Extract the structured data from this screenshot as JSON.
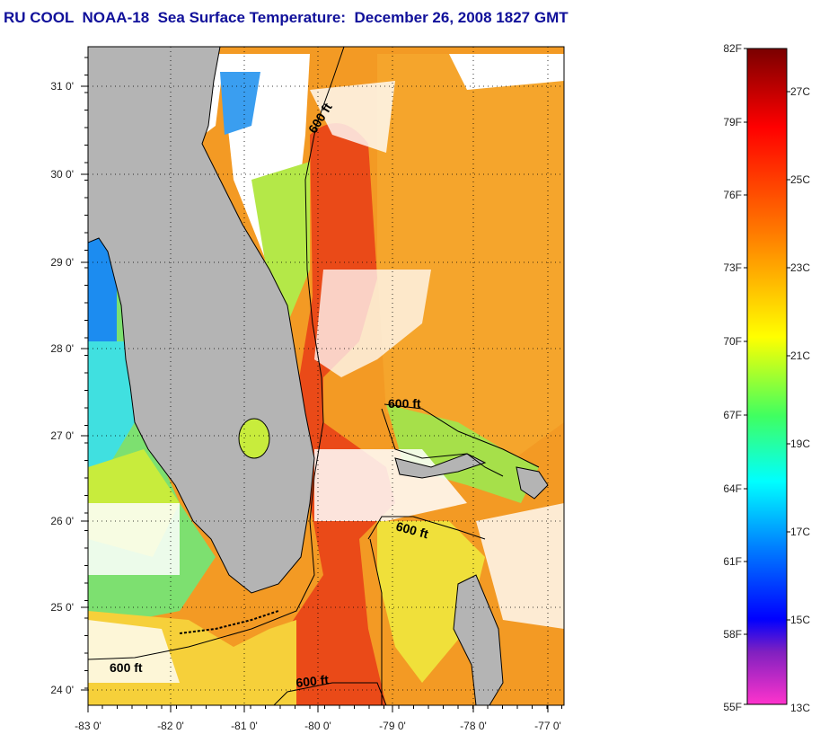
{
  "title": "RU COOL  NOAA-18  Sea Surface Temperature:  December 26, 2008 1827 GMT",
  "map": {
    "lon_labels": [
      "-83 0'",
      "-82 0'",
      "-81 0'",
      "-80 0'",
      "-79 0'",
      "-78 0'",
      "-77 0'"
    ],
    "lat_labels": [
      "31 0'",
      "30 0'",
      "29 0'",
      "28 0'",
      "27 0'",
      "26 0'",
      "25 0'",
      "24 0'"
    ],
    "isobath_labels": [
      "600 ft",
      "600 ft",
      "600 ft",
      "600 ft",
      "600 ft"
    ],
    "colors": {
      "land": "#b4b4b4",
      "cloud": "#ffffff",
      "gulf_stream": "#ea4a18",
      "open_ocean": "#f39a24",
      "shelf": "#a6e04a"
    }
  },
  "colorbar": {
    "f_labels": [
      "82F",
      "79F",
      "76F",
      "73F",
      "70F",
      "67F",
      "64F",
      "61F",
      "58F",
      "55F"
    ],
    "c_labels": [
      "27C",
      "25C",
      "23C",
      "21C",
      "19C",
      "17C",
      "15C",
      "13C"
    ],
    "stops": [
      "#7a0000",
      "#ff0000",
      "#ff7a00",
      "#ffff00",
      "#00ff88",
      "#00ffff",
      "#0000ff",
      "#ff33cc"
    ]
  }
}
